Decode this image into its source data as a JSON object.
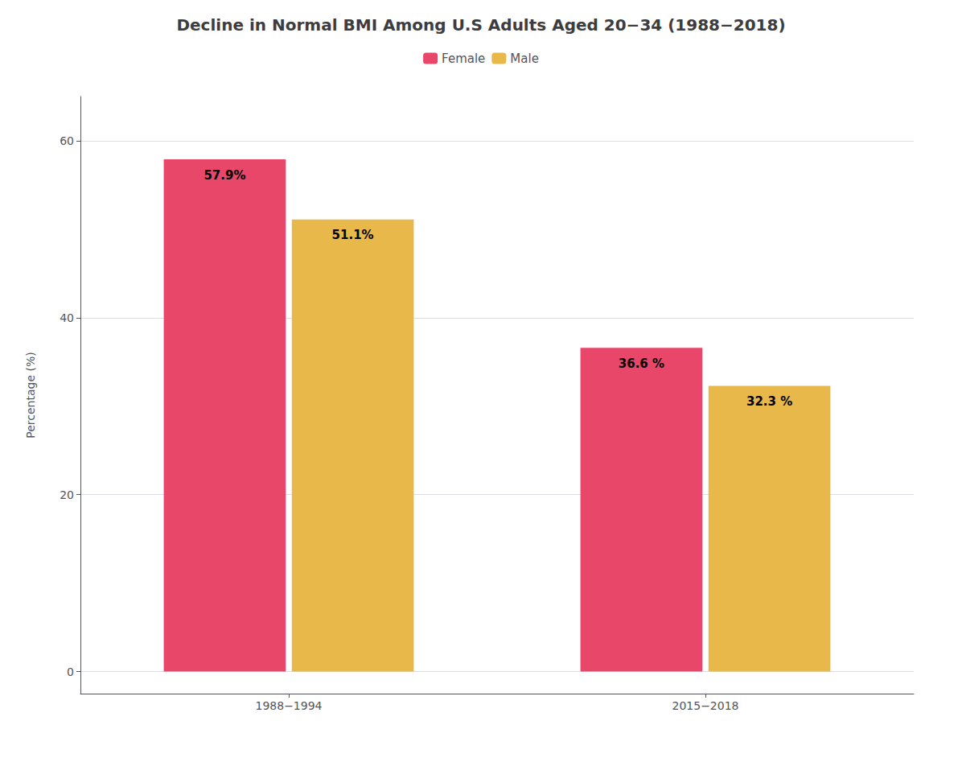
{
  "chart_data": {
    "type": "bar",
    "title": "Decline in Normal BMI Among U.S Adults Aged 20−34 (1988−2018)",
    "ylabel": "Percentage (%)",
    "categories": [
      "1988−1994",
      "2015−2018"
    ],
    "series": [
      {
        "name": "Female",
        "color": "#E8476A",
        "values": [
          57.9,
          36.6
        ],
        "value_labels": [
          "57.9%",
          "36.6 %"
        ]
      },
      {
        "name": "Male",
        "color": "#E8B84B",
        "values": [
          51.1,
          32.3
        ],
        "value_labels": [
          "51.1%",
          "32.3 %"
        ]
      }
    ],
    "ylim": [
      -2.5,
      65
    ],
    "yticks": [
      0,
      20,
      40,
      60
    ],
    "grid": true,
    "legend": "top",
    "data_labels": true
  }
}
